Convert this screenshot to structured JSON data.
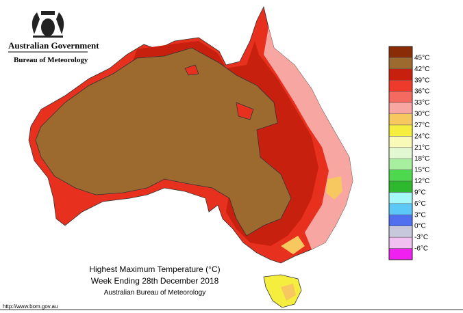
{
  "header": {
    "government": "Australian Government",
    "bureau": "Bureau of Meteorology"
  },
  "title": {
    "line1": "Highest Maximum Temperature (°C)",
    "line2": "Week Ending 28th December 2018",
    "line3": "Australian Bureau of Meteorology"
  },
  "url": "http://www.bom.gov.au",
  "legend": {
    "colors": [
      "#8a2c05",
      "#9c6a2f",
      "#c8200e",
      "#ee3a2a",
      "#f46a60",
      "#f8a6a2",
      "#f8c860",
      "#f6ee3e",
      "#fafab8",
      "#e2f8d2",
      "#a8f0a0",
      "#4ed84e",
      "#2eb82e",
      "#a4f8f8",
      "#5cc8f8",
      "#5070f0",
      "#c8c8dc",
      "#f0c0f0",
      "#f020f0"
    ],
    "labels": [
      "45°C",
      "42°C",
      "39°C",
      "36°C",
      "33°C",
      "30°C",
      "27°C",
      "24°C",
      "21°C",
      "18°C",
      "15°C",
      "12°C",
      "9°C",
      "6°C",
      "3°C",
      "0°C",
      "-3°C",
      "-6°C"
    ]
  }
}
